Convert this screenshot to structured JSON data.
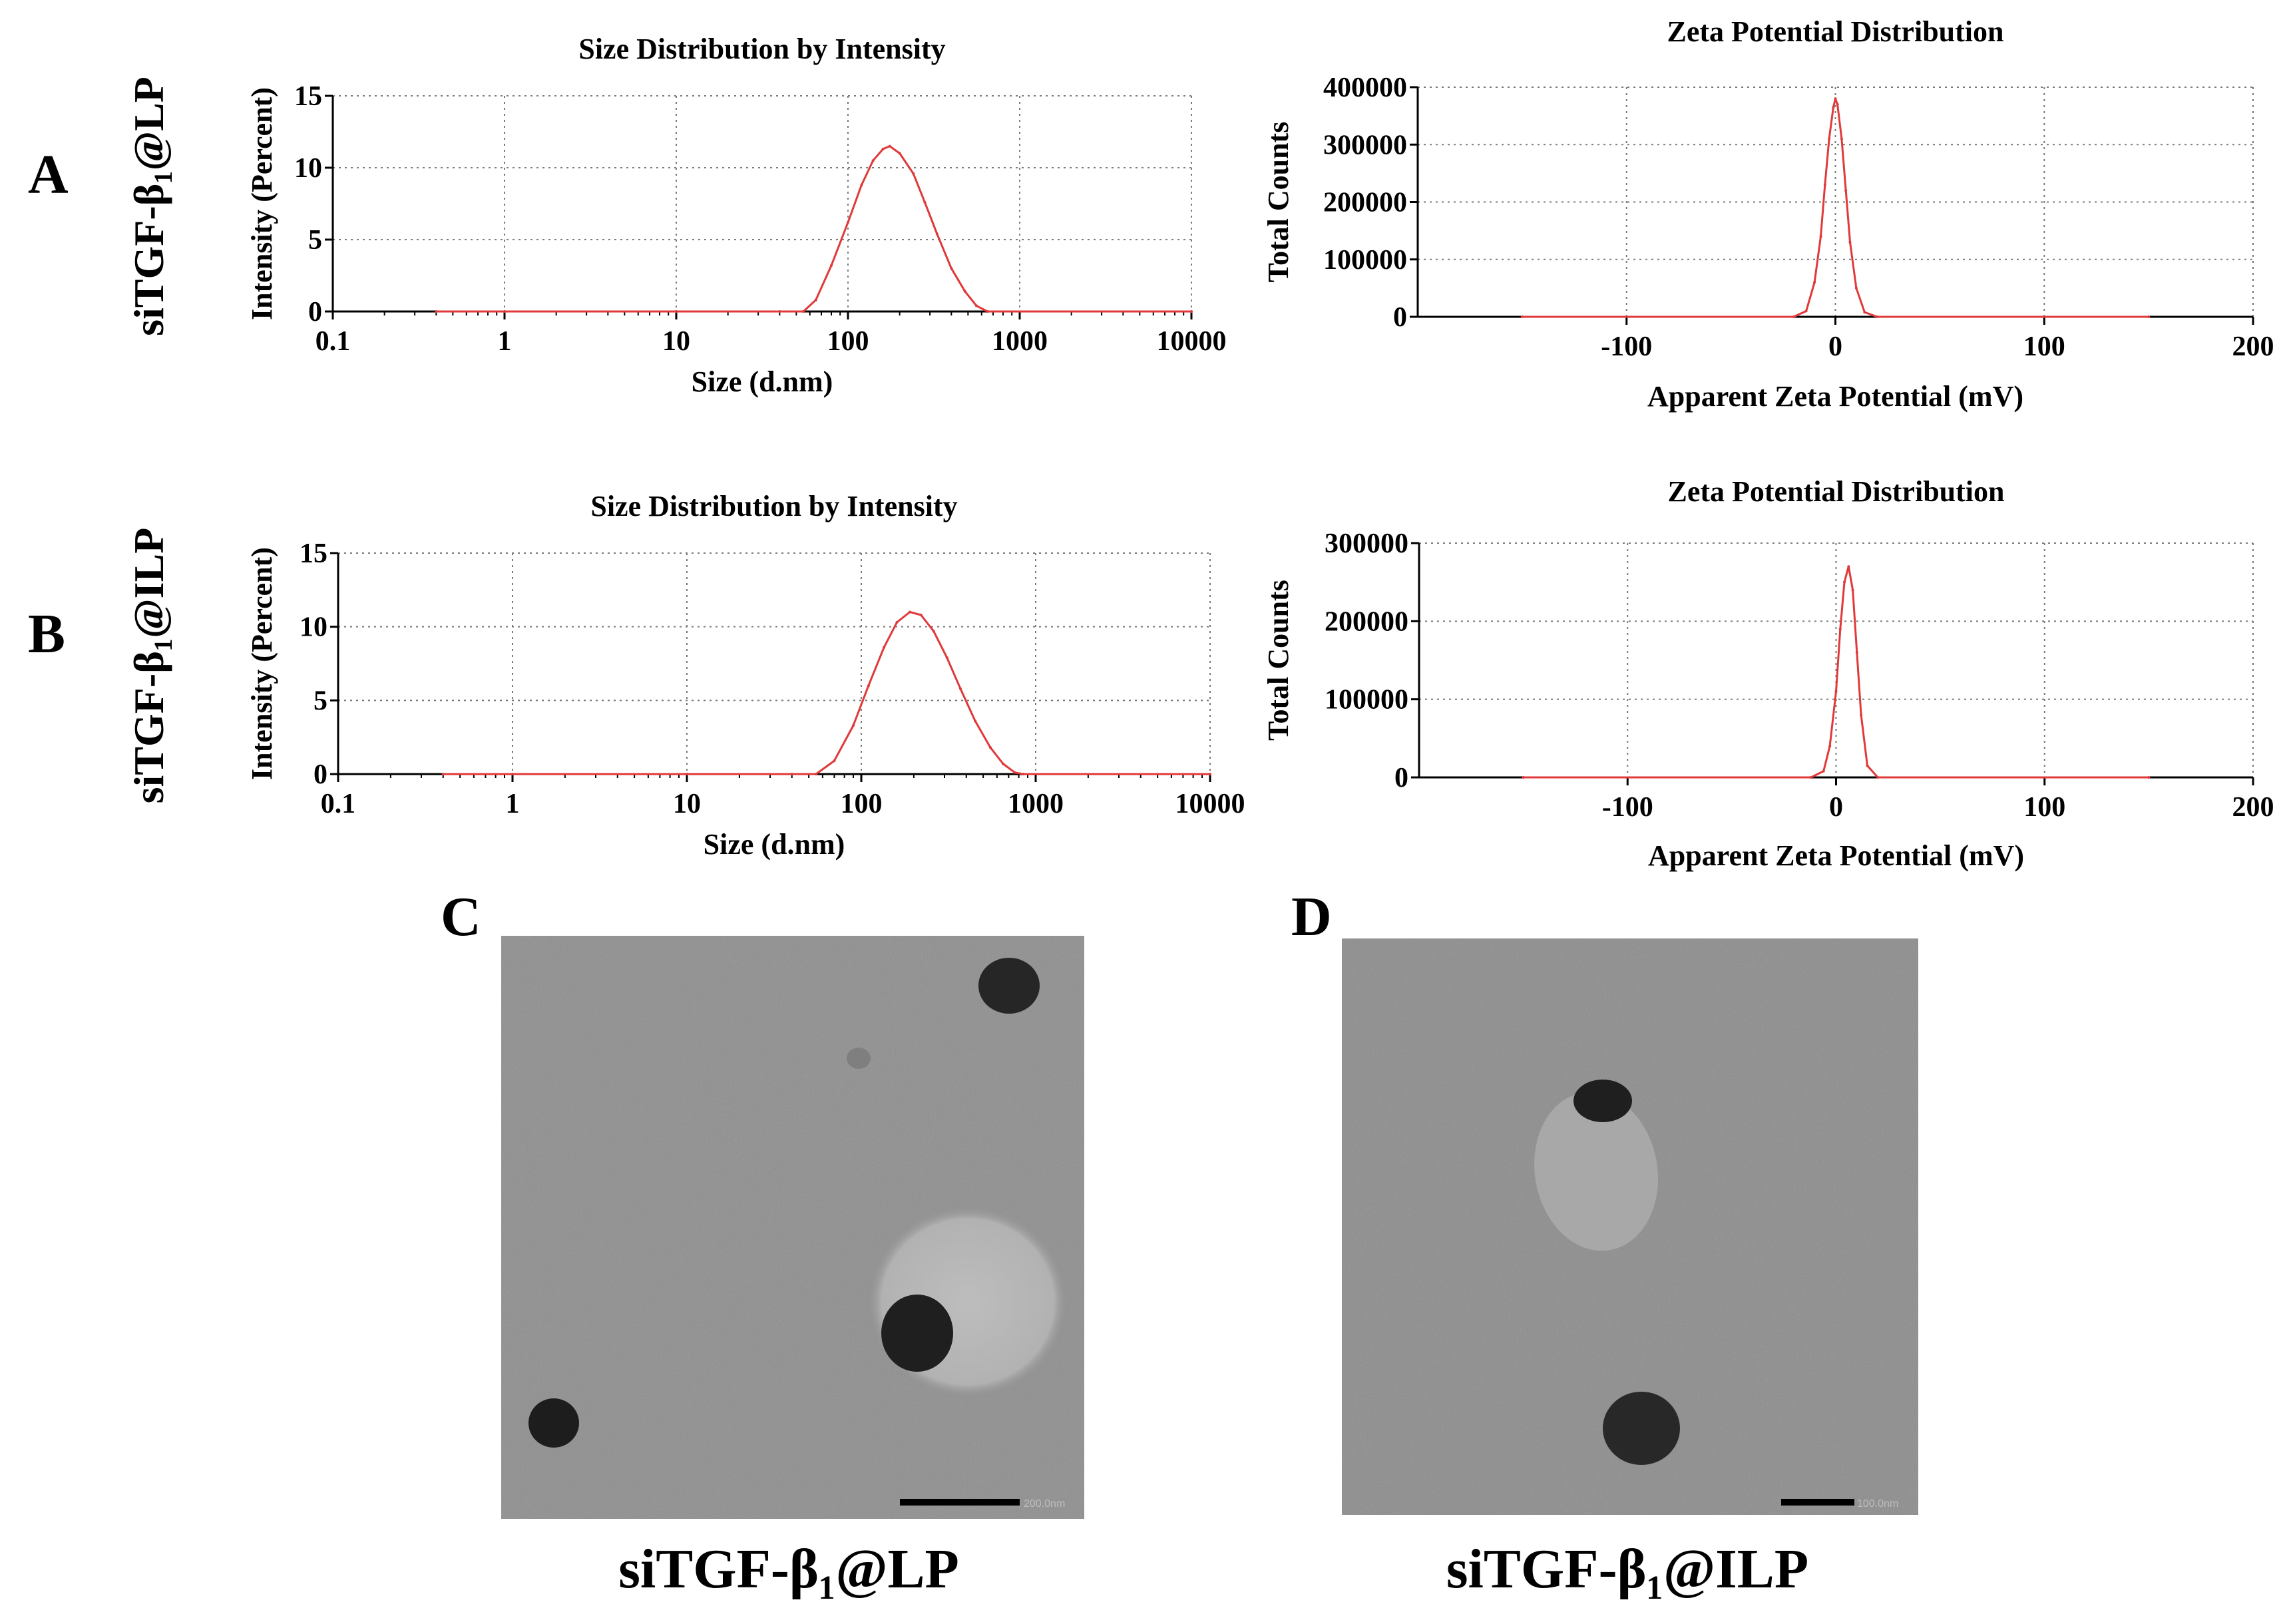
{
  "panels": {
    "A": "A",
    "B": "B",
    "C": "C",
    "D": "D"
  },
  "row_labels": {
    "A": "siTGF-β₁@LP",
    "B": "siTGF-β₁@ILP"
  },
  "tem": {
    "C": {
      "caption": "siTGF-β₁@LP",
      "scale_bar_text": "200.0nm"
    },
    "D": {
      "caption": "siTGF-β₁@ILP",
      "scale_bar_text": "100.0nm"
    }
  },
  "colors": {
    "curve": "#e0393a",
    "grid": "#7a7a7a",
    "axis": "#000000",
    "tem_background": "#8e8e8e",
    "tem_particle": "#1e1e1e"
  },
  "chart_data": [
    {
      "id": "size-A",
      "type": "line",
      "title": "Size Distribution by Intensity",
      "xlabel": "Size (d.nm)",
      "ylabel": "Intensity (Percent)",
      "xscale": "log",
      "xlim": [
        0.1,
        10000
      ],
      "ylim": [
        0,
        15
      ],
      "xticks": [
        0.1,
        1,
        10,
        100,
        1000,
        10000
      ],
      "xtick_labels": [
        "0.1",
        "1",
        "10",
        "100",
        "1000",
        "10000"
      ],
      "yticks": [
        0,
        5,
        10,
        15
      ],
      "ytick_labels": [
        "0",
        "5",
        "10",
        "15"
      ],
      "grid": true,
      "series": [
        {
          "x": [
            0.4,
            1,
            10,
            40,
            55,
            65,
            80,
            100,
            120,
            140,
            160,
            175,
            200,
            240,
            280,
            330,
            400,
            480,
            560,
            650,
            10000
          ],
          "y": [
            0,
            0,
            0,
            0,
            0,
            0.8,
            3.2,
            6.2,
            8.8,
            10.5,
            11.3,
            11.5,
            11.0,
            9.6,
            7.6,
            5.4,
            3.0,
            1.4,
            0.4,
            0,
            0
          ]
        }
      ]
    },
    {
      "id": "zeta-A",
      "type": "line",
      "title": "Zeta Potential Distribution",
      "xlabel": "Apparent Zeta Potential (mV)",
      "ylabel": "Total Counts",
      "xlim": [
        -200,
        200
      ],
      "ylim": [
        0,
        400000
      ],
      "xticks": [
        -100,
        0,
        100,
        200
      ],
      "xtick_labels": [
        "-100",
        "0",
        "100",
        "200"
      ],
      "yticks": [
        0,
        100000,
        200000,
        300000,
        400000
      ],
      "ytick_labels": [
        "0",
        "100000",
        "200000",
        "300000",
        "400000"
      ],
      "grid": true,
      "series": [
        {
          "x": [
            -150,
            -20,
            -14,
            -10,
            -7,
            -5,
            -3,
            -1,
            0,
            1,
            3,
            5,
            7,
            10,
            14,
            20,
            150
          ],
          "y": [
            0,
            0,
            10000,
            60000,
            140000,
            230000,
            310000,
            365000,
            380000,
            370000,
            310000,
            220000,
            130000,
            50000,
            8000,
            0,
            0
          ]
        }
      ]
    },
    {
      "id": "size-B",
      "type": "line",
      "title": "Size Distribution by Intensity",
      "xlabel": "Size (d.nm)",
      "ylabel": "Intensity (Percent)",
      "xscale": "log",
      "xlim": [
        0.1,
        10000
      ],
      "ylim": [
        0,
        15
      ],
      "xticks": [
        0.1,
        1,
        10,
        100,
        1000,
        10000
      ],
      "xtick_labels": [
        "0.1",
        "1",
        "10",
        "100",
        "1000",
        "10000"
      ],
      "yticks": [
        0,
        5,
        10,
        15
      ],
      "ytick_labels": [
        "0",
        "5",
        "10",
        "15"
      ],
      "grid": true,
      "series": [
        {
          "x": [
            0.4,
            1,
            10,
            40,
            55,
            70,
            90,
            110,
            135,
            160,
            190,
            220,
            260,
            310,
            370,
            450,
            550,
            650,
            760,
            850,
            10000
          ],
          "y": [
            0,
            0,
            0,
            0,
            0,
            0.9,
            3.3,
            6.0,
            8.6,
            10.3,
            11.0,
            10.8,
            9.7,
            7.9,
            5.8,
            3.6,
            1.8,
            0.7,
            0.1,
            0,
            0
          ]
        }
      ]
    },
    {
      "id": "zeta-B",
      "type": "line",
      "title": "Zeta Potential Distribution",
      "xlabel": "Apparent Zeta Potential (mV)",
      "ylabel": "Total Counts",
      "xlim": [
        -200,
        200
      ],
      "ylim": [
        0,
        300000
      ],
      "xticks": [
        -100,
        0,
        100,
        200
      ],
      "xtick_labels": [
        "-100",
        "0",
        "100",
        "200"
      ],
      "yticks": [
        0,
        100000,
        200000,
        300000
      ],
      "ytick_labels": [
        "0",
        "100000",
        "200000",
        "300000"
      ],
      "grid": true,
      "series": [
        {
          "x": [
            -150,
            -12,
            -6,
            -3,
            0,
            2,
            4,
            6,
            8,
            10,
            12,
            15,
            20,
            150
          ],
          "y": [
            0,
            0,
            8000,
            40000,
            110000,
            190000,
            250000,
            270000,
            240000,
            160000,
            80000,
            15000,
            0,
            0
          ]
        }
      ]
    }
  ]
}
